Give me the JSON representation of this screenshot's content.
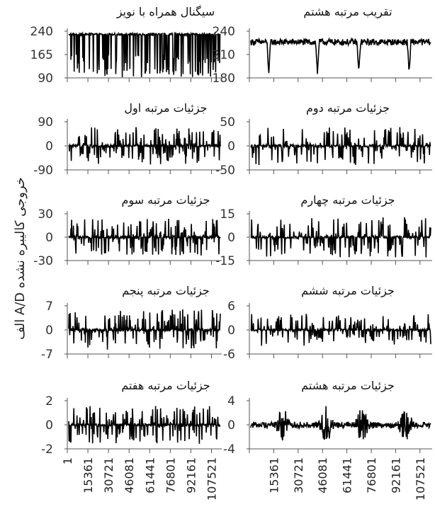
{
  "figure": {
    "ylabel": "خروجی کالیبره نشده A/D الف"
  },
  "chart_data": [
    {
      "type": "line",
      "title": "سیگنال همراه با نویز",
      "yticks": [
        "240",
        "165",
        "90"
      ],
      "ylim": [
        90,
        240
      ],
      "style": "noisy",
      "base": 230,
      "amp": 60
    },
    {
      "type": "line",
      "title": "تقریب مرتبه هشتم",
      "yticks": [
        "240",
        "210",
        "180"
      ],
      "ylim": [
        180,
        240
      ],
      "style": "approx",
      "base": 226,
      "amp": 8
    },
    {
      "type": "line",
      "title": "جزئیات مرتبه اول",
      "yticks": [
        "90",
        "0",
        "-90"
      ],
      "ylim": [
        -90,
        90
      ],
      "style": "detail",
      "base": 0,
      "amp": 70
    },
    {
      "type": "line",
      "title": "جزئیات مرتبه دوم",
      "yticks": [
        "50",
        "0",
        "-50"
      ],
      "ylim": [
        -50,
        50
      ],
      "style": "detail",
      "base": 0,
      "amp": 40
    },
    {
      "type": "line",
      "title": "جزئیات مرتبه سوم",
      "yticks": [
        "30",
        "0",
        "-30"
      ],
      "ylim": [
        -30,
        30
      ],
      "style": "detail",
      "base": 0,
      "amp": 24
    },
    {
      "type": "line",
      "title": "جزئیات مرتبه چهارم",
      "yticks": [
        "15",
        "0",
        "-15"
      ],
      "ylim": [
        -15,
        15
      ],
      "style": "detail",
      "base": 0,
      "amp": 13
    },
    {
      "type": "line",
      "title": "جزئیات مرتبه پنجم",
      "yticks": [
        "7",
        "0",
        "-7"
      ],
      "ylim": [
        -7,
        7
      ],
      "style": "detail",
      "base": 0,
      "amp": 6
    },
    {
      "type": "line",
      "title": "جزئیات مرتبه ششم",
      "yticks": [
        "6",
        "0",
        "-6"
      ],
      "ylim": [
        -6,
        6
      ],
      "style": "detail",
      "base": 0,
      "amp": 4
    },
    {
      "type": "line",
      "title": "جزئیات مرتبه هفتم",
      "yticks": [
        "2",
        "0",
        "-2"
      ],
      "ylim": [
        -2,
        2
      ],
      "style": "detail",
      "base": 0,
      "amp": 1.6
    },
    {
      "type": "line",
      "title": "جزئیات مرتبه هشتم",
      "yticks": [
        "4",
        "0",
        "-4"
      ],
      "ylim": [
        -4,
        4
      ],
      "style": "detail8",
      "base": 0,
      "amp": 3.5
    }
  ],
  "xaxis": {
    "ticks": [
      "1",
      "15361",
      "30721",
      "46081",
      "61441",
      "76801",
      "92161",
      "107521"
    ]
  }
}
